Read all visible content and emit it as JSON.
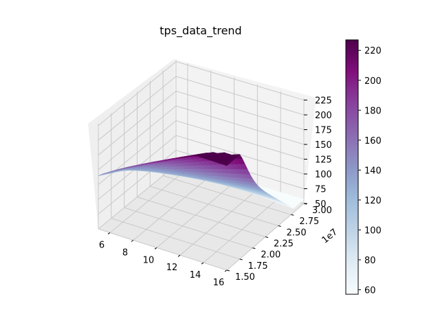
{
  "chart_data": {
    "type": "surface3d",
    "title": "tps_data_trend",
    "xlabel": "",
    "ylabel": "",
    "zlabel": "",
    "x_ticks": [
      "6",
      "8",
      "10",
      "12",
      "14",
      "16"
    ],
    "x_range": [
      5,
      16
    ],
    "y_ticks": [
      "1.50",
      "1.75",
      "2.00",
      "2.25",
      "2.50",
      "2.75",
      "3.00"
    ],
    "y_range": [
      15000000,
      30000000
    ],
    "y_offset_label": "1e7",
    "z_ticks": [
      "50",
      "75",
      "100",
      "125",
      "150",
      "175",
      "200",
      "225"
    ],
    "z_range": [
      50,
      228
    ],
    "colorbar": {
      "colormap": "BuPu",
      "range": [
        57,
        227
      ],
      "ticks": [
        "60",
        "80",
        "100",
        "120",
        "140",
        "160",
        "180",
        "200",
        "220"
      ]
    },
    "grid": true,
    "surface_summary": {
      "max_value": 227,
      "max_at": {
        "x": 16,
        "y": 15000000
      },
      "min_value": 57,
      "min_at": {
        "x": 16,
        "y": 30000000
      },
      "corner_values": [
        {
          "x": 5,
          "y": 15000000,
          "z": 140
        },
        {
          "x": 16,
          "y": 15000000,
          "z": 227
        },
        {
          "x": 5,
          "y": 30000000,
          "z": 60
        },
        {
          "x": 16,
          "y": 30000000,
          "z": 57
        }
      ]
    }
  }
}
